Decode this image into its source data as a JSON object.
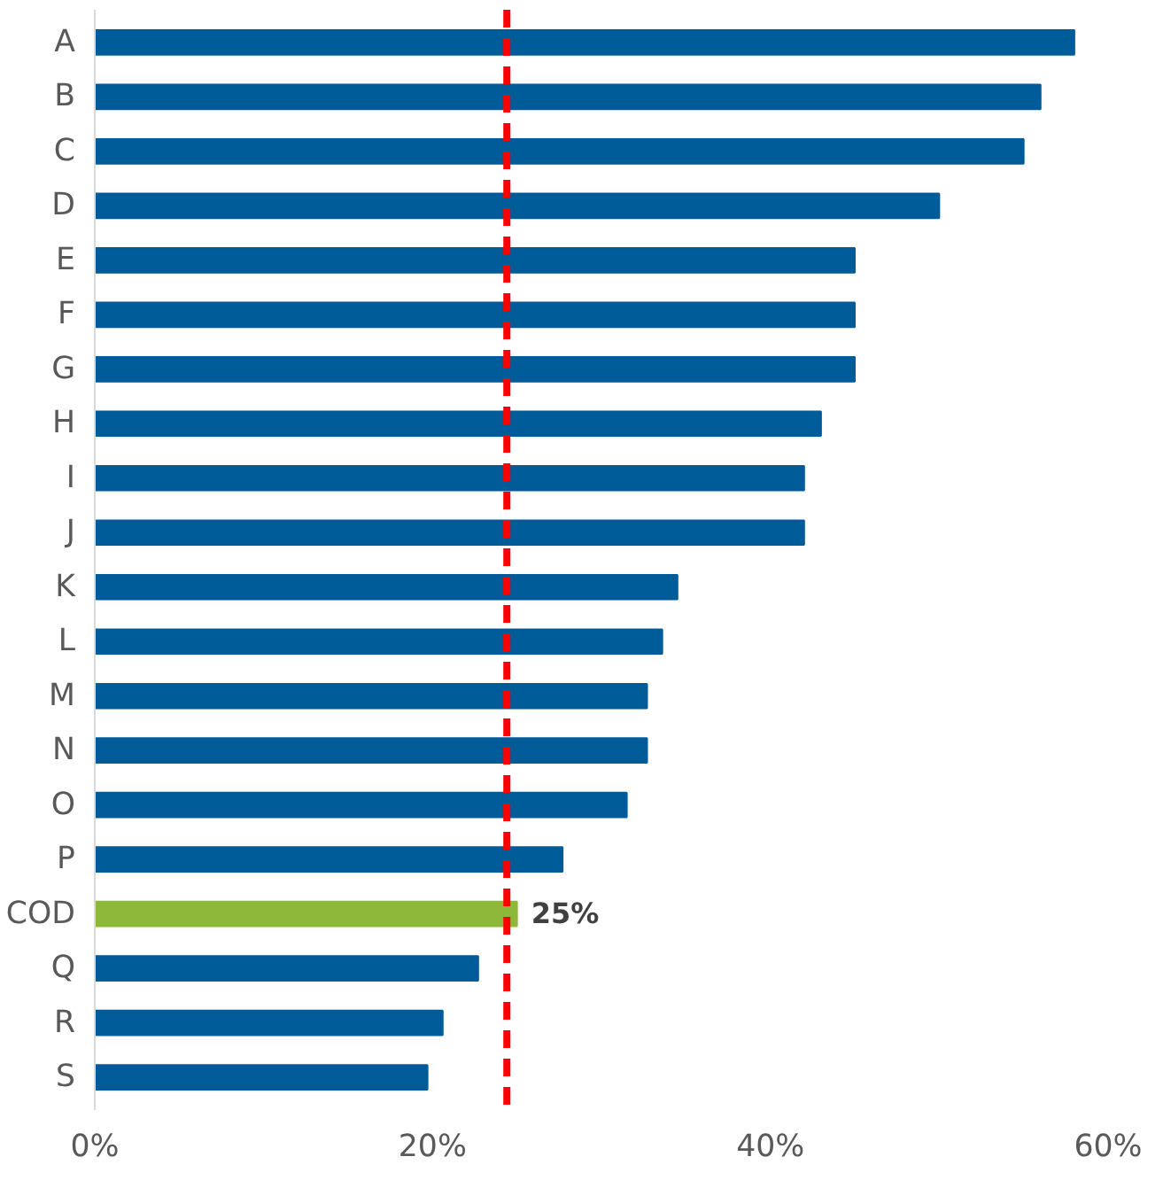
{
  "chart_data": {
    "type": "bar",
    "orientation": "horizontal",
    "categories": [
      "A",
      "B",
      "C",
      "D",
      "E",
      "F",
      "G",
      "H",
      "I",
      "J",
      "K",
      "L",
      "M",
      "N",
      "O",
      "P",
      "COD",
      "Q",
      "R",
      "S"
    ],
    "values": [
      58,
      56,
      55,
      50,
      45,
      45,
      45,
      43,
      42,
      42,
      34.5,
      33.6,
      32.7,
      32.7,
      31.5,
      27.7,
      25,
      22.7,
      20.6,
      19.7
    ],
    "colors": [
      "#005b99",
      "#005b99",
      "#005b99",
      "#005b99",
      "#005b99",
      "#005b99",
      "#005b99",
      "#005b99",
      "#005b99",
      "#005b99",
      "#005b99",
      "#005b99",
      "#005b99",
      "#005b99",
      "#005b99",
      "#005b99",
      "#8db83a",
      "#005b99",
      "#005b99",
      "#005b99"
    ],
    "value_labels": [
      null,
      null,
      null,
      null,
      null,
      null,
      null,
      null,
      null,
      null,
      null,
      null,
      null,
      null,
      null,
      null,
      "25%",
      null,
      null,
      null
    ],
    "xlim": [
      0,
      60
    ],
    "xticks": [
      {
        "value": 0,
        "label": "0%"
      },
      {
        "value": 20,
        "label": "20%"
      },
      {
        "value": 40,
        "label": "40%"
      },
      {
        "value": 60,
        "label": "60%"
      }
    ],
    "ref_lines": [
      {
        "axis": "x",
        "value": 24.4,
        "color": "#ff0000",
        "line_style": "dashed"
      }
    ],
    "grid": false
  }
}
